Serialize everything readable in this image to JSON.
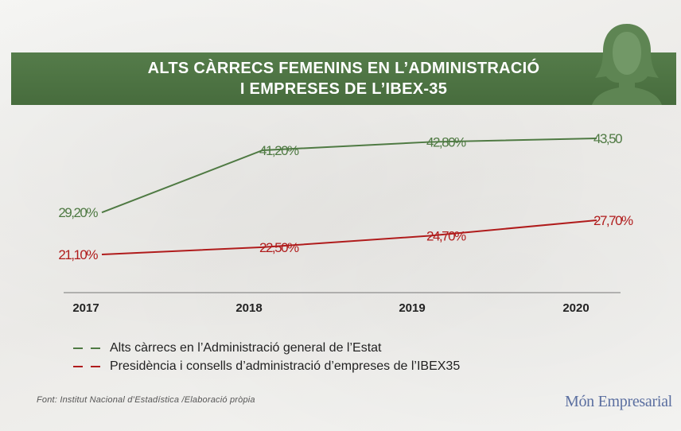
{
  "title_line1": "ALTS CÀRRECS FEMENINS EN L’ADMINISTRACIÓ",
  "title_line2": "I EMPRESES DE L’IBEX-35",
  "colors": {
    "green": "#4f7a43",
    "red": "#b01c1c",
    "banner": "#4a7140"
  },
  "chart_data": {
    "type": "line",
    "categories": [
      "2017",
      "2018",
      "2019",
      "2020"
    ],
    "series": [
      {
        "name": "Alts càrrecs en l’Administració general de l’Estat",
        "values": [
          29.2,
          41.2,
          42.8,
          43.5
        ],
        "labels": [
          "29,20%",
          "41,20%",
          "42,80%",
          "43,50"
        ],
        "color": "#4f7a43"
      },
      {
        "name": "Presidència i consells d’administració d’empreses de l’IBEX35",
        "values": [
          21.1,
          22.5,
          24.7,
          27.7
        ],
        "labels": [
          "21,10%",
          "22,50%",
          "24,70%",
          "27,70%"
        ],
        "color": "#b01c1c"
      }
    ],
    "legend_position": "bottom-left",
    "grid": false
  },
  "source": "Font: Institut Nacional d’Estadística /Elaboració pròpia",
  "brand": "Món Empresarial",
  "icons": {
    "header": "woman-silhouette-icon"
  }
}
